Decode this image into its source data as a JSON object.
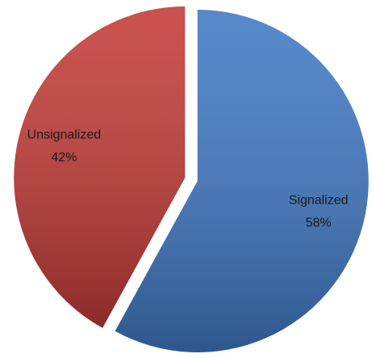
{
  "chart_data": {
    "type": "pie",
    "categories": [
      "Signalized",
      "Unsignalized"
    ],
    "values": [
      58,
      42
    ],
    "value_labels": [
      "58%",
      "42%"
    ],
    "colors": [
      "#3f78c4",
      "#c23a36"
    ]
  }
}
